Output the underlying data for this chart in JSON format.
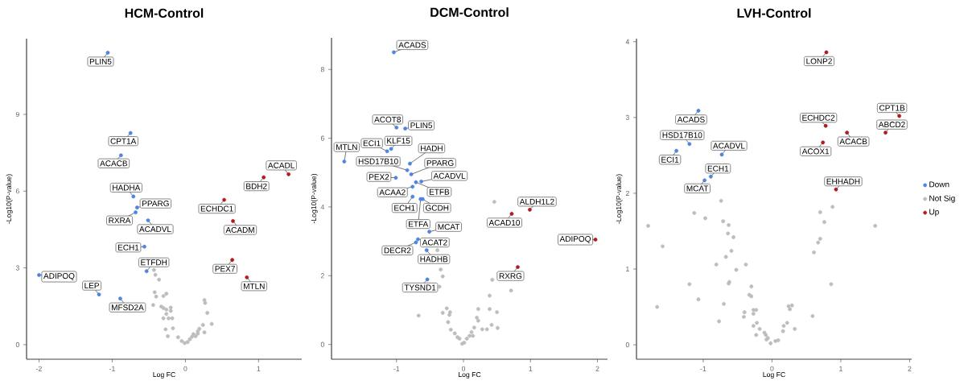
{
  "chart_data": [
    {
      "type": "scatter",
      "title": "HCM-Control",
      "xlabel": "Log FC",
      "ylabel": "-Log10(P-value)",
      "xlim": [
        -2.17,
        1.59
      ],
      "ylim": [
        -0.57,
        11.96
      ],
      "xticks": [
        -2,
        -1,
        0,
        1
      ],
      "yticks": [
        0,
        3,
        6,
        9
      ],
      "marker": "circle",
      "series": [
        {
          "color": "#4f84e0",
          "x": [
            -1.06,
            -0.75,
            -0.88,
            -0.71,
            -0.66,
            -0.68,
            -0.51,
            -0.56,
            -0.53,
            -2.0,
            -1.18,
            -0.89
          ],
          "values": [
            11.41,
            8.27,
            7.4,
            5.79,
            5.36,
            5.17,
            4.86,
            3.83,
            2.87,
            2.72,
            1.96,
            1.8
          ]
        },
        {
          "color": "#bdbdbd",
          "x": [
            -0.43,
            -0.41,
            -0.36,
            -0.42,
            -0.4,
            -0.3,
            -0.26,
            -0.44,
            -0.33,
            -0.3,
            -0.26,
            -0.2,
            -0.2,
            -0.26,
            -0.3,
            -0.23,
            -0.18,
            -0.27,
            -0.17,
            -0.24,
            -0.1,
            -0.05,
            -0.01,
            0.03,
            0.06,
            0.09,
            0.11,
            0.17,
            0.19,
            0.24,
            0.26,
            0.36,
            0.3,
            0.27,
            0.26,
            0.14,
            0.17
          ],
          "values": [
            2.92,
            2.73,
            2.54,
            2.05,
            1.88,
            1.9,
            1.99,
            1.55,
            1.49,
            1.43,
            1.37,
            1.45,
            1.32,
            1.2,
            1.03,
            1.03,
            1.03,
            0.6,
            0.64,
            0.33,
            0.29,
            0.14,
            0.06,
            0.1,
            0.21,
            0.31,
            0.41,
            0.52,
            0.62,
            0.77,
            0.48,
            0.81,
            1.24,
            1.63,
            1.74,
            0.33,
            0.43
          ]
        },
        {
          "color": "#b01c1c",
          "x": [
            1.41,
            1.07,
            0.53,
            0.65,
            0.64,
            0.84
          ],
          "values": [
            6.66,
            6.54,
            5.66,
            4.83,
            3.31,
            2.63
          ]
        }
      ],
      "annotations": [
        {
          "text": "PLIN5",
          "x": -1.06,
          "y": 11.41
        },
        {
          "text": "CPT1A",
          "x": -0.75,
          "y": 8.27
        },
        {
          "text": "ACACB",
          "x": -0.88,
          "y": 7.4
        },
        {
          "text": "HADHA",
          "x": -0.71,
          "y": 5.79
        },
        {
          "text": "PPARG",
          "x": -0.66,
          "y": 5.36
        },
        {
          "text": "RXRA",
          "x": -0.68,
          "y": 5.17
        },
        {
          "text": "ACADVL",
          "x": -0.51,
          "y": 4.86
        },
        {
          "text": "ECH1",
          "x": -0.56,
          "y": 3.83
        },
        {
          "text": "ETFDH",
          "x": -0.53,
          "y": 2.87
        },
        {
          "text": "ADIPOQ",
          "x": -2.0,
          "y": 2.72
        },
        {
          "text": "LEP",
          "x": -1.18,
          "y": 1.96
        },
        {
          "text": "MFSD2A",
          "x": -0.89,
          "y": 1.8
        },
        {
          "text": "ACADL",
          "x": 1.41,
          "y": 6.66
        },
        {
          "text": "BDH2",
          "x": 1.07,
          "y": 6.54
        },
        {
          "text": "ECHDC1",
          "x": 0.53,
          "y": 5.66
        },
        {
          "text": "ACADM",
          "x": 0.65,
          "y": 4.83
        },
        {
          "text": "PEX7",
          "x": 0.64,
          "y": 3.31
        },
        {
          "text": "MTLN",
          "x": 0.84,
          "y": 2.63
        }
      ]
    },
    {
      "type": "scatter",
      "title": "DCM-Control",
      "xlabel": "Log FC",
      "ylabel": "-Log10(P-value)",
      "xlim": [
        -1.97,
        2.15
      ],
      "ylim": [
        -0.43,
        8.92
      ],
      "xticks": [
        -1,
        0,
        1,
        2
      ],
      "yticks": [
        0,
        2,
        4,
        6,
        8
      ],
      "marker": "circle",
      "series": [
        {
          "color": "#4f84e0",
          "x": [
            -1.04,
            -1.0,
            -0.87,
            -1.08,
            -1.14,
            -1.78,
            -0.8,
            -0.84,
            -0.78,
            -1.01,
            -0.63,
            -0.71,
            -0.76,
            -0.76,
            -0.61,
            -0.64,
            -0.51,
            -0.68,
            -0.71,
            -0.55,
            -0.54
          ],
          "values": [
            8.5,
            6.31,
            6.28,
            5.69,
            5.62,
            5.32,
            5.26,
            5.07,
            4.95,
            4.85,
            4.74,
            4.72,
            4.59,
            4.3,
            4.23,
            4.23,
            3.28,
            3.06,
            2.97,
            2.74,
            1.89
          ]
        },
        {
          "color": "#bdbdbd",
          "x": [
            0.46,
            -0.39,
            -0.34,
            -0.31,
            -0.36,
            0.43,
            0.71,
            0.39,
            -0.67,
            -0.31,
            -0.25,
            -0.2,
            -0.21,
            -0.23,
            -0.19,
            0.22,
            0.39,
            0.5,
            0.2,
            0.22,
            0.42,
            0.51,
            0.28,
            0.35,
            0.16,
            0.12,
            0.09,
            0.05,
            0.01,
            -0.02,
            -0.13,
            -0.09,
            -0.06,
            0.14
          ],
          "values": [
            4.15,
            2.74,
            2.18,
            1.98,
            1.68,
            1.88,
            1.57,
            1.42,
            0.84,
            0.92,
            1.05,
            0.94,
            0.86,
            0.65,
            0.43,
            1.03,
            1.03,
            0.94,
            0.78,
            0.69,
            0.57,
            0.48,
            0.44,
            0.44,
            0.49,
            0.36,
            0.25,
            0.17,
            0.05,
            0.02,
            0.32,
            0.21,
            0.17,
            0.25
          ]
        },
        {
          "color": "#b01c1c",
          "x": [
            1.97,
            0.99,
            0.72,
            0.81
          ],
          "values": [
            3.05,
            3.92,
            3.8,
            2.25
          ]
        }
      ],
      "annotations": [
        {
          "text": "ACADS",
          "x": -1.04,
          "y": 8.5
        },
        {
          "text": "ACOT8",
          "x": -1.0,
          "y": 6.31
        },
        {
          "text": "PLIN5",
          "x": -0.87,
          "y": 6.28
        },
        {
          "text": "KLF15",
          "x": -1.08,
          "y": 5.69
        },
        {
          "text": "ECI1",
          "x": -1.14,
          "y": 5.62
        },
        {
          "text": "MTLN",
          "x": -1.78,
          "y": 5.32
        },
        {
          "text": "HADH",
          "x": -0.8,
          "y": 5.26
        },
        {
          "text": "HSD17B10",
          "x": -0.84,
          "y": 5.07
        },
        {
          "text": "PPARG",
          "x": -0.78,
          "y": 4.95
        },
        {
          "text": "PEX2",
          "x": -1.01,
          "y": 4.85
        },
        {
          "text": "ACADVL",
          "x": -0.63,
          "y": 4.74
        },
        {
          "text": "ETFB",
          "x": -0.71,
          "y": 4.72
        },
        {
          "text": "ACAA2",
          "x": -0.76,
          "y": 4.59
        },
        {
          "text": "ECH1",
          "x": -0.76,
          "y": 4.3
        },
        {
          "text": "GCDH",
          "x": -0.61,
          "y": 4.23
        },
        {
          "text": "ETFA",
          "x": -0.64,
          "y": 4.23
        },
        {
          "text": "MCAT",
          "x": -0.51,
          "y": 3.28
        },
        {
          "text": "ACAT2",
          "x": -0.68,
          "y": 3.06
        },
        {
          "text": "DECR2",
          "x": -0.71,
          "y": 2.97
        },
        {
          "text": "HADHB",
          "x": -0.55,
          "y": 2.74
        },
        {
          "text": "TYSND1",
          "x": -0.54,
          "y": 1.89
        },
        {
          "text": "ADIPOQ",
          "x": 1.97,
          "y": 3.05
        },
        {
          "text": "ALDH1L2",
          "x": 0.99,
          "y": 3.92
        },
        {
          "text": "ACAD10",
          "x": 0.72,
          "y": 3.8
        },
        {
          "text": "RXRG",
          "x": 0.81,
          "y": 2.25
        }
      ]
    },
    {
      "type": "scatter",
      "title": "LVH-Control",
      "xlabel": "Log FC",
      "ylabel": "-Log10(P-value)",
      "xlim": [
        -1.97,
        2.03
      ],
      "ylim": [
        -0.19,
        4.04
      ],
      "xticks": [
        -1,
        0,
        1,
        2
      ],
      "yticks": [
        0,
        1,
        2,
        3,
        4
      ],
      "marker": "circle",
      "legend": "right",
      "series": [
        {
          "name": "Down",
          "color": "#4f84e0",
          "x": [
            -1.07,
            -1.2,
            -1.39,
            -0.73,
            -0.89,
            -0.98
          ],
          "values": [
            3.09,
            2.65,
            2.56,
            2.51,
            2.22,
            2.17
          ]
        },
        {
          "name": "Not Sig",
          "color": "#bdbdbd",
          "x": [
            -1.8,
            -1.59,
            -1.67,
            -1.2,
            -1.13,
            -1.07,
            -0.97,
            -0.74,
            -0.71,
            -0.63,
            -0.64,
            -0.56,
            -0.59,
            -0.67,
            -0.81,
            -0.38,
            -0.52,
            -0.62,
            -0.63,
            -0.7,
            -0.77,
            -0.3,
            -0.33,
            -0.3,
            -0.27,
            -0.23,
            -0.27,
            -0.4,
            -0.41,
            -0.27,
            -0.22,
            -0.18,
            -0.23,
            -0.11,
            -0.09,
            -0.06,
            -0.08,
            -0.02,
            0.05,
            0.09,
            0.17,
            0.16,
            0.22,
            0.24,
            0.29,
            0.26,
            0.33,
            0.59,
            0.61,
            0.67,
            0.7,
            0.7,
            0.76,
            0.88,
            0.86,
            1.5
          ],
          "values": [
            1.57,
            1.3,
            0.5,
            0.8,
            1.74,
            0.6,
            1.67,
            1.9,
            1.63,
            1.58,
            1.47,
            1.42,
            1.24,
            1.16,
            1.06,
            1.06,
            0.99,
            0.83,
            0.81,
            0.54,
            0.31,
            0.77,
            0.66,
            0.64,
            0.46,
            0.46,
            0.41,
            0.43,
            0.37,
            0.25,
            0.29,
            0.21,
            0.13,
            0.16,
            0.13,
            0.09,
            0.07,
            0.02,
            0.05,
            0.06,
            0.25,
            0.18,
            0.29,
            0.51,
            0.52,
            0.47,
            0.21,
            0.38,
            1.22,
            1.35,
            1.4,
            1.75,
            1.62,
            1.82,
            0.8,
            1.57
          ]
        },
        {
          "name": "Up",
          "color": "#b01c1c",
          "x": [
            0.79,
            1.85,
            0.78,
            1.09,
            1.65,
            0.74,
            0.93
          ],
          "values": [
            3.86,
            3.02,
            2.89,
            2.8,
            2.8,
            2.67,
            2.05
          ]
        }
      ],
      "annotations": [
        {
          "text": "ACADS",
          "x": -1.07,
          "y": 3.09
        },
        {
          "text": "HSD17B10",
          "x": -1.2,
          "y": 2.65
        },
        {
          "text": "ECI1",
          "x": -1.39,
          "y": 2.56
        },
        {
          "text": "ACADVL",
          "x": -0.73,
          "y": 2.51
        },
        {
          "text": "ECH1",
          "x": -0.89,
          "y": 2.22
        },
        {
          "text": "MCAT",
          "x": -0.98,
          "y": 2.17
        },
        {
          "text": "LONP2",
          "x": 0.79,
          "y": 3.86
        },
        {
          "text": "CPT1B",
          "x": 1.85,
          "y": 3.02
        },
        {
          "text": "ECHDC2",
          "x": 0.78,
          "y": 2.89
        },
        {
          "text": "ACACB",
          "x": 1.09,
          "y": 2.8
        },
        {
          "text": "ABCD2",
          "x": 1.65,
          "y": 2.8
        },
        {
          "text": "ACOX1",
          "x": 0.74,
          "y": 2.67
        },
        {
          "text": "EHHADH",
          "x": 0.93,
          "y": 2.05
        }
      ]
    }
  ]
}
